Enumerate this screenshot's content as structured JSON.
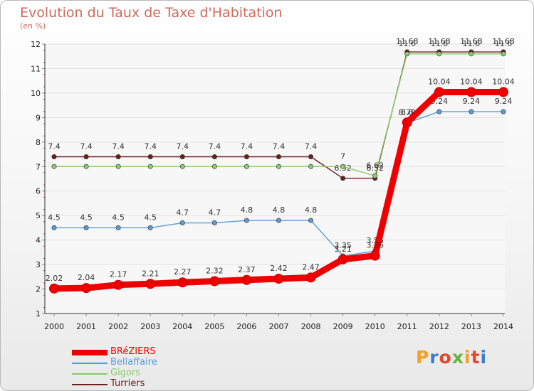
{
  "title": "Evolution du Taux de Taxe d'Habitation",
  "subtitle": "(en %)",
  "logo": {
    "text": "Proxiti",
    "colors": [
      "#f2a02b",
      "#3a7fd0",
      "#e6452f",
      "#68b43a",
      "#f2a02b",
      "#e6452f",
      "#3a7fd0"
    ]
  },
  "chart_data": {
    "type": "line",
    "x": [
      "2000",
      "2001",
      "2002",
      "2003",
      "2004",
      "2005",
      "2006",
      "2007",
      "2008",
      "2009",
      "2010",
      "2011",
      "2012",
      "2013",
      "2014"
    ],
    "ylim": [
      1,
      12
    ],
    "yticks": [
      "1",
      "2",
      "3",
      "4",
      "5",
      "6",
      "7",
      "8",
      "9",
      "10",
      "11",
      "12"
    ],
    "grid": true,
    "legend_position": "bottom-left",
    "series": [
      {
        "name": "Turriers",
        "color": "#6b1f1f",
        "values": [
          7.4,
          7.4,
          7.4,
          7.4,
          7.4,
          7.4,
          7.4,
          7.4,
          7.4,
          6.52,
          6.52,
          11.68,
          11.68,
          11.68,
          11.68
        ],
        "labels": [
          "7.4",
          "7.4",
          "7.4",
          "7.4",
          "7.4",
          "7.4",
          "7.4",
          "7.4",
          "7.4",
          "6.52",
          "6.52",
          "11.68",
          "11.68",
          "11.68",
          "11.68"
        ]
      },
      {
        "name": "Gigors",
        "color": "#88cc66",
        "values": [
          7,
          7,
          7,
          7,
          7,
          7,
          7,
          7,
          7,
          7,
          6.62,
          11.6,
          11.6,
          11.6,
          11.6
        ],
        "labels": [
          "",
          "",
          "",
          "",
          "",
          "",
          "",
          "",
          "",
          "7",
          "6.62",
          "11.6",
          "11.6",
          "11.6",
          "11.6"
        ]
      },
      {
        "name": "Bellaffaire",
        "color": "#5b9bd5",
        "values": [
          4.5,
          4.5,
          4.5,
          4.5,
          4.7,
          4.7,
          4.8,
          4.8,
          4.8,
          3.35,
          3.55,
          8.78,
          9.24,
          9.24,
          9.24
        ],
        "labels": [
          "4.5",
          "4.5",
          "4.5",
          "4.5",
          "4.7",
          "4.7",
          "4.8",
          "4.8",
          "4.8",
          "3.35",
          "3.55",
          "8.78",
          "9.24",
          "9.24",
          "9.24"
        ]
      },
      {
        "name": "BRéZIERS",
        "color": "#ee0000",
        "values": [
          2.02,
          2.04,
          2.17,
          2.21,
          2.27,
          2.32,
          2.37,
          2.42,
          2.47,
          3.21,
          3.36,
          8.8,
          10.04,
          10.04,
          10.04
        ],
        "labels": [
          "2.02",
          "2.04",
          "2.17",
          "2.21",
          "2.27",
          "2.32",
          "2.37",
          "2.42",
          "2.47",
          "3.21",
          "3.36",
          "8.8",
          "10.04",
          "10.04",
          "10.04"
        ]
      }
    ],
    "legend": [
      {
        "name": "BRéZIERS",
        "color": "#ee0000"
      },
      {
        "name": "Bellaffaire",
        "color": "#5b9bd5"
      },
      {
        "name": "Gigors",
        "color": "#88cc66"
      },
      {
        "name": "Turriers",
        "color": "#6b1f1f"
      }
    ]
  }
}
